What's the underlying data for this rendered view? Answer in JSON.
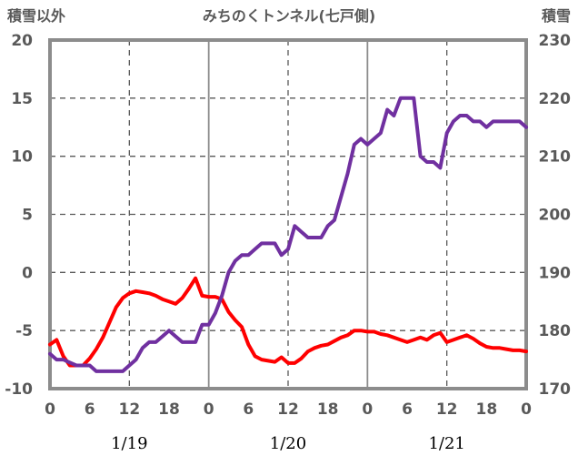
{
  "chart_data": {
    "type": "line",
    "title": "みちのくトンネル(七戸側)",
    "ylabel_left": "積雪以外",
    "ylabel_right": "積雪",
    "y_left": {
      "min": -10,
      "max": 20,
      "ticks": [
        20,
        15,
        10,
        5,
        0,
        -5,
        -10
      ]
    },
    "y_right": {
      "min": 170,
      "max": 230,
      "ticks": [
        230,
        220,
        210,
        200,
        190,
        180,
        170
      ]
    },
    "x": {
      "min": 0,
      "max": 72,
      "tick_step": 3,
      "tick_labels": [
        "0",
        "",
        "6",
        "",
        "12",
        "",
        "18",
        "",
        "0",
        "",
        "6",
        "",
        "12",
        "",
        "18",
        "",
        "0",
        "",
        "6",
        "",
        "12",
        "",
        "18",
        "",
        "0"
      ],
      "date_labels": [
        {
          "hour": 12,
          "label": "1/19"
        },
        {
          "hour": 36,
          "label": "1/20"
        },
        {
          "hour": 60,
          "label": "1/21"
        }
      ],
      "dashed_hours": [
        12,
        36,
        60
      ],
      "solid_hours": [
        24,
        48
      ]
    },
    "series": [
      {
        "name": "積雪以外",
        "axis": "left",
        "color": "#ff0000",
        "points": [
          [
            0,
            -6.2
          ],
          [
            1,
            -5.8
          ],
          [
            2,
            -7.2
          ],
          [
            3,
            -8.0
          ],
          [
            4,
            -8.0
          ],
          [
            5,
            -8.0
          ],
          [
            6,
            -7.4
          ],
          [
            7,
            -6.6
          ],
          [
            8,
            -5.6
          ],
          [
            9,
            -4.3
          ],
          [
            10,
            -3.0
          ],
          [
            11,
            -2.2
          ],
          [
            12,
            -1.8
          ],
          [
            13,
            -1.6
          ],
          [
            14,
            -1.7
          ],
          [
            15,
            -1.8
          ],
          [
            16,
            -2.0
          ],
          [
            17,
            -2.3
          ],
          [
            18,
            -2.5
          ],
          [
            19,
            -2.7
          ],
          [
            20,
            -2.2
          ],
          [
            21,
            -1.4
          ],
          [
            22,
            -0.5
          ],
          [
            23,
            -2.0
          ],
          [
            24,
            -2.1
          ],
          [
            25,
            -2.1
          ],
          [
            26,
            -2.3
          ],
          [
            27,
            -3.4
          ],
          [
            28,
            -4.1
          ],
          [
            29,
            -4.7
          ],
          [
            30,
            -6.2
          ],
          [
            31,
            -7.2
          ],
          [
            32,
            -7.5
          ],
          [
            33,
            -7.6
          ],
          [
            34,
            -7.7
          ],
          [
            35,
            -7.3
          ],
          [
            36,
            -7.8
          ],
          [
            37,
            -7.8
          ],
          [
            38,
            -7.4
          ],
          [
            39,
            -6.8
          ],
          [
            40,
            -6.5
          ],
          [
            41,
            -6.3
          ],
          [
            42,
            -6.2
          ],
          [
            43,
            -5.9
          ],
          [
            44,
            -5.6
          ],
          [
            45,
            -5.4
          ],
          [
            46,
            -5.0
          ],
          [
            47,
            -5.0
          ],
          [
            48,
            -5.1
          ],
          [
            49,
            -5.1
          ],
          [
            50,
            -5.3
          ],
          [
            51,
            -5.4
          ],
          [
            52,
            -5.6
          ],
          [
            53,
            -5.8
          ],
          [
            54,
            -6.0
          ],
          [
            55,
            -5.8
          ],
          [
            56,
            -5.6
          ],
          [
            57,
            -5.8
          ],
          [
            58,
            -5.4
          ],
          [
            59,
            -5.2
          ],
          [
            60,
            -6.0
          ],
          [
            61,
            -5.8
          ],
          [
            62,
            -5.6
          ],
          [
            63,
            -5.4
          ],
          [
            64,
            -5.7
          ],
          [
            65,
            -6.1
          ],
          [
            66,
            -6.4
          ],
          [
            67,
            -6.5
          ],
          [
            68,
            -6.5
          ],
          [
            69,
            -6.6
          ],
          [
            70,
            -6.7
          ],
          [
            71,
            -6.7
          ],
          [
            72,
            -6.8
          ]
        ]
      },
      {
        "name": "積雪",
        "axis": "right",
        "color": "#7030a0",
        "points": [
          [
            0,
            176
          ],
          [
            1,
            175
          ],
          [
            2,
            175
          ],
          [
            3,
            174.5
          ],
          [
            4,
            174
          ],
          [
            5,
            174
          ],
          [
            6,
            174
          ],
          [
            7,
            173
          ],
          [
            8,
            173
          ],
          [
            9,
            173
          ],
          [
            10,
            173
          ],
          [
            11,
            173
          ],
          [
            12,
            174
          ],
          [
            13,
            175
          ],
          [
            14,
            177
          ],
          [
            15,
            178
          ],
          [
            16,
            178
          ],
          [
            17,
            179
          ],
          [
            18,
            180
          ],
          [
            19,
            179
          ],
          [
            20,
            178
          ],
          [
            21,
            178
          ],
          [
            22,
            178
          ],
          [
            23,
            181
          ],
          [
            24,
            181
          ],
          [
            25,
            183
          ],
          [
            26,
            186
          ],
          [
            27,
            190
          ],
          [
            28,
            192
          ],
          [
            29,
            193
          ],
          [
            30,
            193
          ],
          [
            31,
            194
          ],
          [
            32,
            195
          ],
          [
            33,
            195
          ],
          [
            34,
            195
          ],
          [
            35,
            193
          ],
          [
            36,
            194
          ],
          [
            37,
            198
          ],
          [
            38,
            197
          ],
          [
            39,
            196
          ],
          [
            40,
            196
          ],
          [
            41,
            196
          ],
          [
            42,
            198
          ],
          [
            43,
            199
          ],
          [
            44,
            203
          ],
          [
            45,
            207
          ],
          [
            46,
            212
          ],
          [
            47,
            213
          ],
          [
            48,
            212
          ],
          [
            49,
            213
          ],
          [
            50,
            214
          ],
          [
            51,
            218
          ],
          [
            52,
            217
          ],
          [
            53,
            220
          ],
          [
            54,
            220
          ],
          [
            55,
            220
          ],
          [
            56,
            210
          ],
          [
            57,
            209
          ],
          [
            58,
            209
          ],
          [
            59,
            208
          ],
          [
            60,
            214
          ],
          [
            61,
            216
          ],
          [
            62,
            217
          ],
          [
            63,
            217
          ],
          [
            64,
            216
          ],
          [
            65,
            216
          ],
          [
            66,
            215
          ],
          [
            67,
            216
          ],
          [
            68,
            216
          ],
          [
            69,
            216
          ],
          [
            70,
            216
          ],
          [
            71,
            216
          ],
          [
            72,
            215
          ]
        ]
      }
    ]
  }
}
